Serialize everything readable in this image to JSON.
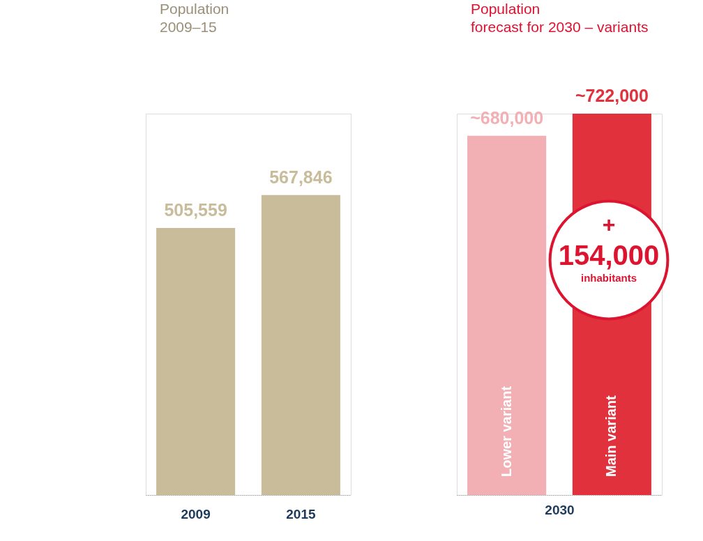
{
  "chart_data": [
    {
      "type": "bar",
      "title": "Population\n2009–15",
      "categories": [
        "2009",
        "2015"
      ],
      "values": [
        505559,
        567846
      ],
      "colors": [
        "#c9bc9b",
        "#c9bc9b"
      ],
      "value_labels": [
        "505,559",
        "567,846"
      ],
      "tick_labels": "x"
    },
    {
      "type": "bar",
      "title": "Population\nforecast for 2030 – variants",
      "xlabel": "2030",
      "categories": [
        "Lower variant",
        "Main variant"
      ],
      "values": [
        680000,
        722000
      ],
      "colors": [
        "#f2b0b5",
        "#e0313d"
      ],
      "value_labels": [
        "~680,000",
        "~722,000"
      ],
      "tick_labels": false,
      "annotations": [
        "+\n154,000\ninhabitants"
      ]
    }
  ]
}
